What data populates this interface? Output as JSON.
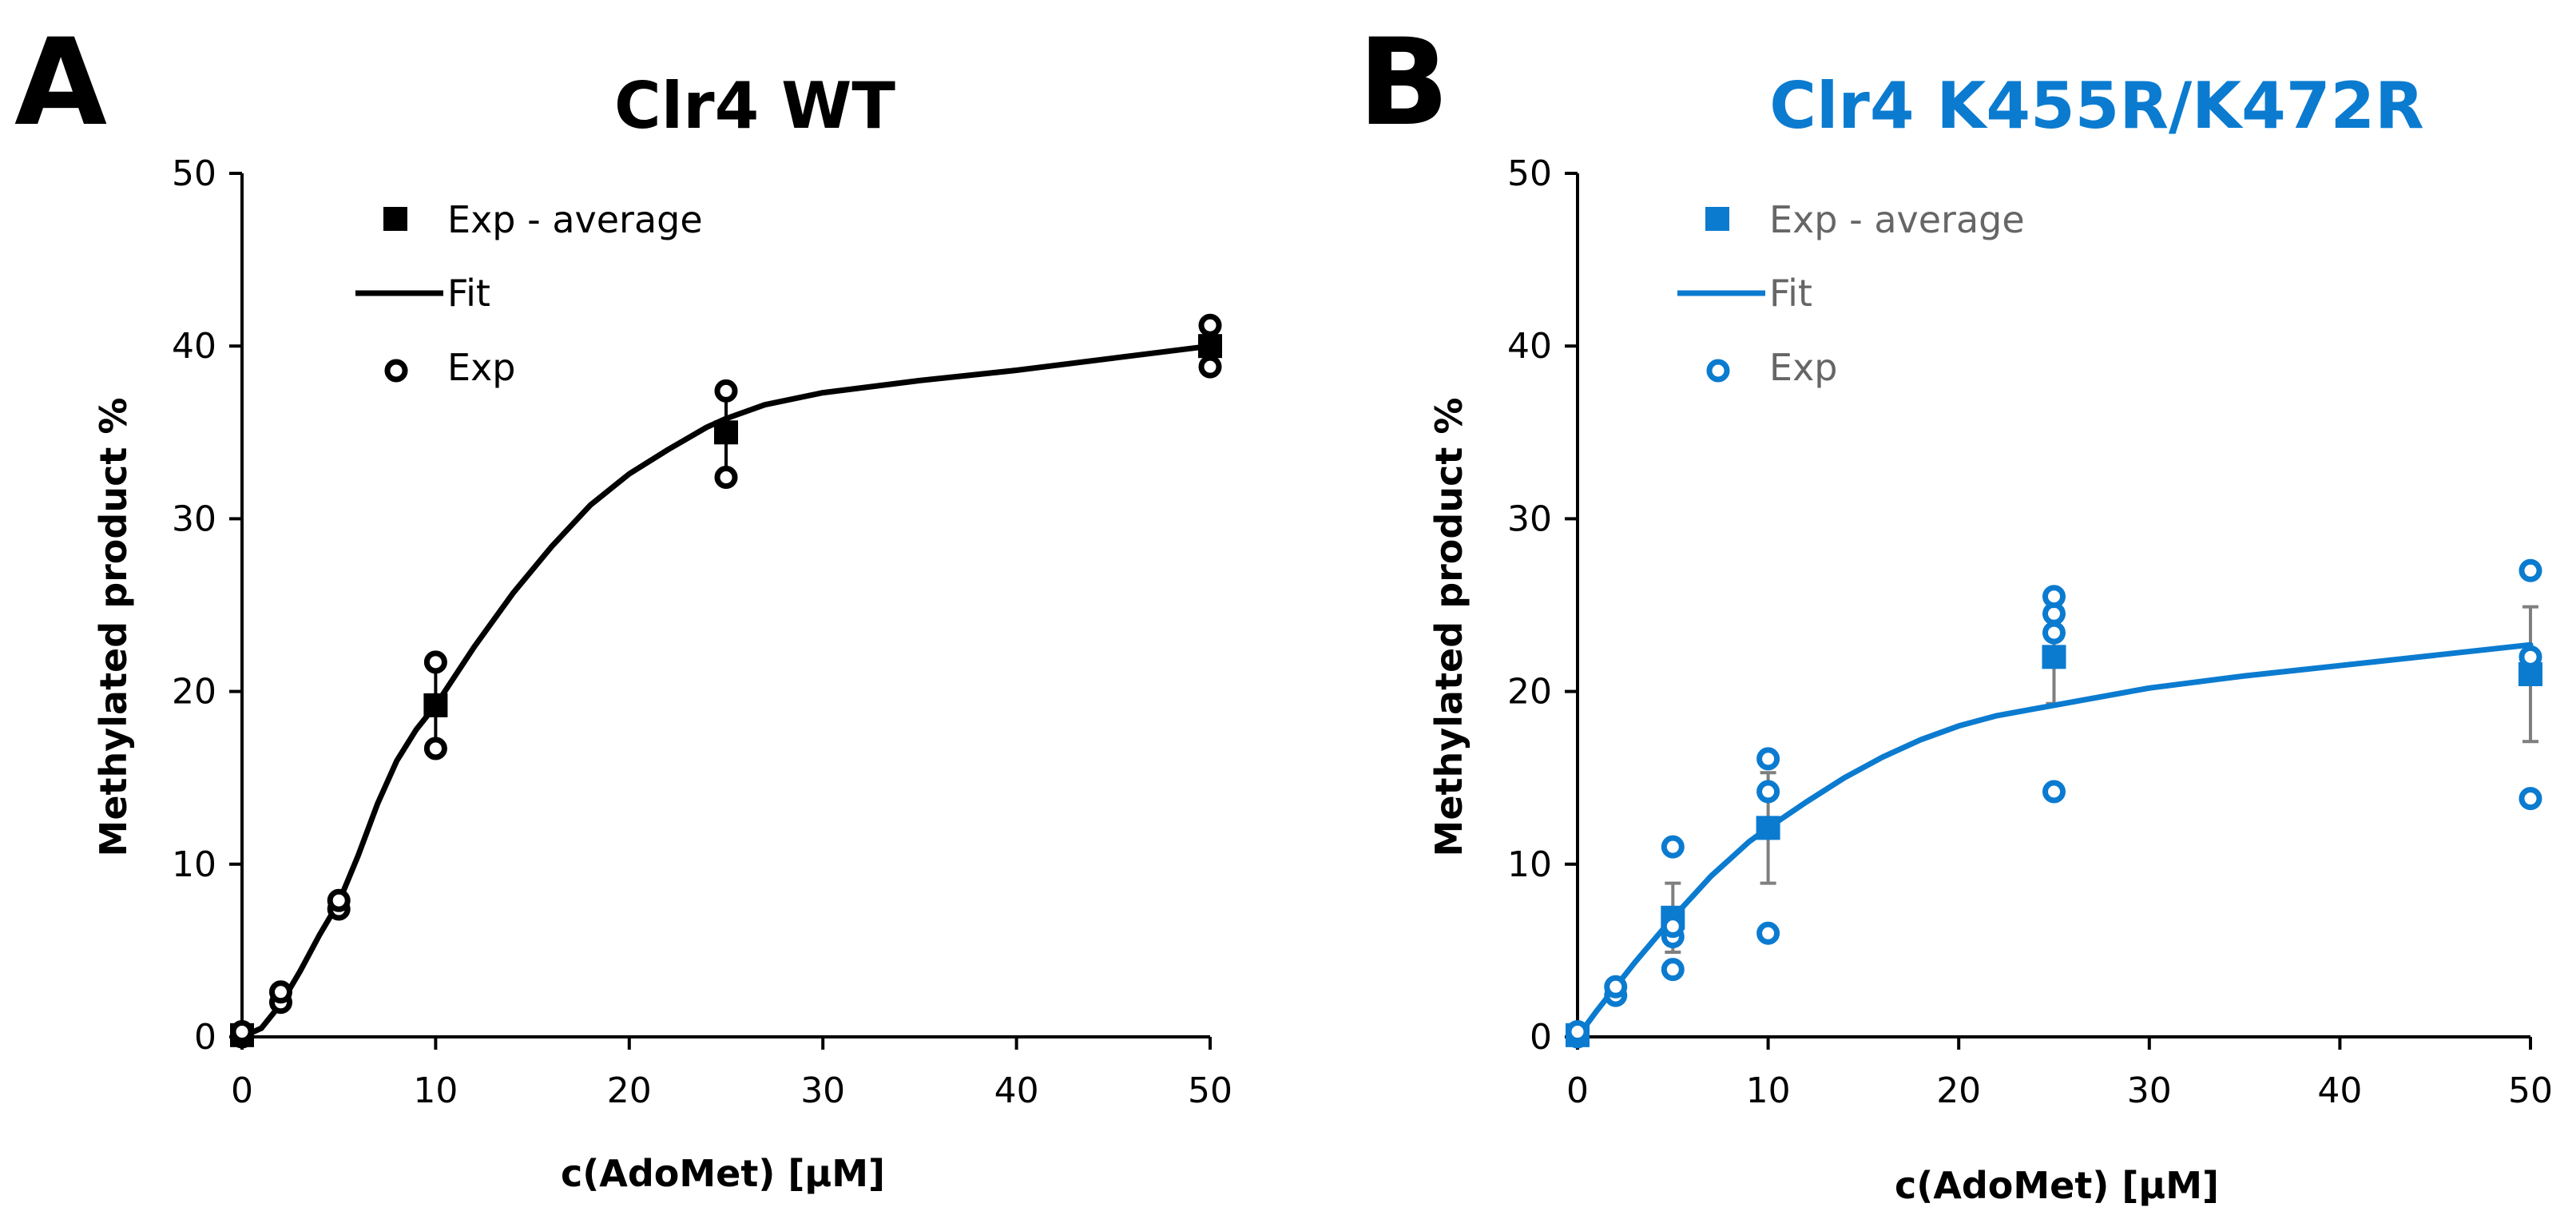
{
  "colors": {
    "panel_a": "#000000",
    "panel_b": "#0b7bd0",
    "error_bar": "#7f7f7f",
    "legend_text_b": "#666666"
  },
  "chart_data": [
    {
      "panel": "A",
      "type": "scatter",
      "title": "Clr4 WT",
      "xlabel": "c(AdoMet)  [µM]",
      "ylabel": "Methylated product %",
      "xlim": [
        0,
        50
      ],
      "ylim": [
        0,
        50
      ],
      "xticks": [
        "0",
        "10",
        "20",
        "30",
        "40",
        "50"
      ],
      "yticks": [
        "0",
        "10",
        "20",
        "30",
        "40",
        "50"
      ],
      "legend": [
        "Exp - average",
        "Fit",
        "Exp"
      ],
      "legend_position": "top-left",
      "series": [
        {
          "name": "Exp - average",
          "style": "filled-square",
          "x": [
            0,
            10,
            25,
            50
          ],
          "y": [
            0.1,
            19.2,
            35.0,
            40.0
          ],
          "error": [
            0,
            2.4,
            2.5,
            1.2
          ]
        },
        {
          "name": "Fit",
          "style": "line",
          "x": [
            0,
            1,
            2,
            3,
            4,
            5,
            6,
            7,
            8,
            9,
            10,
            12,
            14,
            16,
            18,
            20,
            22,
            24,
            25,
            27,
            30,
            35,
            40,
            45,
            50
          ],
          "y": [
            0,
            0.5,
            1.9,
            3.8,
            5.9,
            7.8,
            10.5,
            13.5,
            16.0,
            17.8,
            19.2,
            22.6,
            25.7,
            28.4,
            30.8,
            32.6,
            34.0,
            35.3,
            35.8,
            36.6,
            37.3,
            38.0,
            38.6,
            39.3,
            40.0
          ]
        },
        {
          "name": "Exp",
          "style": "open-circle",
          "x": [
            0,
            0,
            2,
            2,
            5,
            5,
            10,
            10,
            25,
            25,
            50,
            50
          ],
          "y": [
            0,
            0.3,
            2.0,
            2.6,
            7.4,
            7.9,
            16.7,
            21.7,
            32.4,
            37.4,
            38.8,
            41.2
          ]
        }
      ]
    },
    {
      "panel": "B",
      "type": "scatter",
      "title": "Clr4 K455R/K472R",
      "xlabel": "c(AdoMet)  [µM]",
      "ylabel": "Methylated product %",
      "xlim": [
        0,
        50
      ],
      "ylim": [
        0,
        50
      ],
      "xticks": [
        "0",
        "10",
        "20",
        "30",
        "40",
        "50"
      ],
      "yticks": [
        "0",
        "10",
        "20",
        "30",
        "40",
        "50"
      ],
      "legend": [
        "Exp - average",
        "Fit",
        "Exp"
      ],
      "legend_position": "top-left",
      "series": [
        {
          "name": "Exp - average",
          "style": "filled-square",
          "x": [
            0,
            5,
            10,
            25,
            50
          ],
          "y": [
            0.1,
            6.9,
            12.1,
            22.0,
            21.0
          ],
          "error": [
            0,
            2.0,
            3.2,
            2.7,
            3.9
          ]
        },
        {
          "name": "Fit",
          "style": "line",
          "x": [
            0,
            1,
            2,
            3,
            4,
            5,
            6,
            7,
            8,
            9,
            10,
            12,
            14,
            16,
            18,
            20,
            22,
            25,
            30,
            35,
            40,
            45,
            50
          ],
          "y": [
            0,
            1.5,
            2.9,
            4.3,
            5.6,
            6.9,
            8.1,
            9.3,
            10.3,
            11.3,
            12.1,
            13.6,
            15.0,
            16.2,
            17.2,
            18.0,
            18.6,
            19.2,
            20.2,
            20.9,
            21.5,
            22.1,
            22.7
          ]
        },
        {
          "name": "Exp",
          "style": "open-circle",
          "x": [
            0,
            0,
            2,
            2,
            5,
            5,
            5,
            5,
            10,
            10,
            10,
            25,
            25,
            25,
            25,
            50,
            50,
            50
          ],
          "y": [
            0,
            0.3,
            2.4,
            2.9,
            3.9,
            5.8,
            6.4,
            11.0,
            6.0,
            14.2,
            16.1,
            14.2,
            23.4,
            24.5,
            25.5,
            13.8,
            22.0,
            27.0
          ]
        }
      ]
    }
  ]
}
